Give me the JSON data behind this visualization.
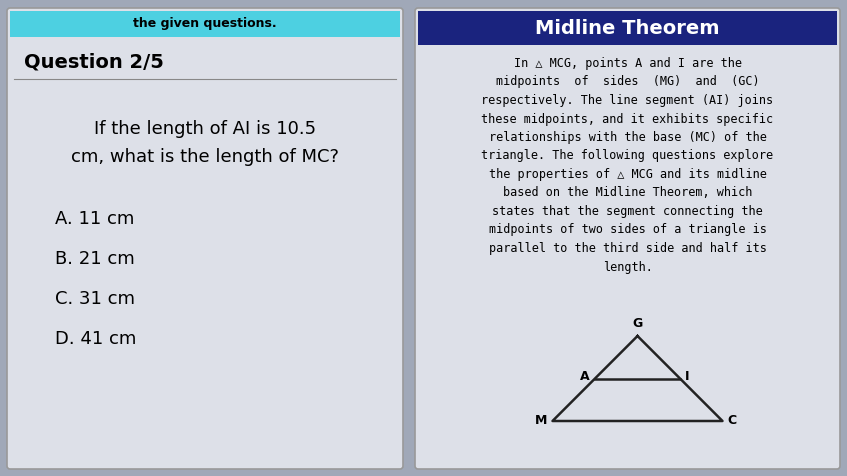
{
  "bg_color": "#a0a8b8",
  "left_panel_bg": "#dde0e8",
  "right_panel_bg": "#dde0e8",
  "header_top_left_bg": "#4dd0e1",
  "header_top_left_text": "the given questions.",
  "header_right_bg": "#1a237e",
  "header_right_text": "Midline Theorem",
  "question_label": "Question 2/5",
  "question_text_line1": "If the length of AI is 10.5",
  "question_text_line2": "cm, what is the length of MC?",
  "choices": [
    "A. 11 cm",
    "B. 21 cm",
    "C. 31 cm",
    "D. 41 cm"
  ],
  "right_body_lines": [
    "In △ MCG, points A and I are the",
    "midpoints  of  sides  (MG)  and  (GC)",
    "respectively. The line segment (AI) joins",
    "these midpoints, and it exhibits specific",
    "relationships with the base (MC) of the",
    "triangle. The following questions explore",
    "the properties of △ MCG and its midline",
    "based on the Midline Theorem, which",
    "states that the segment connecting the",
    "midpoints of two sides of a triangle is",
    "parallel to the third side and half its",
    "length."
  ],
  "triangle_color": "#222222",
  "midline_color": "#222222",
  "label_G": "G",
  "label_M": "M",
  "label_C": "C",
  "label_A": "A",
  "label_I": "I"
}
